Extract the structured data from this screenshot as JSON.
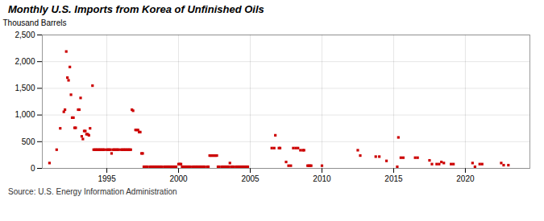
{
  "chart_data": {
    "type": "scatter",
    "title": "Monthly U.S. Imports from Korea of Unfinished Oils",
    "ylabel": "Thousand Barrels",
    "source": "Source: U.S. Energy Information Administration",
    "color": "#cc0000",
    "marker": "square",
    "grid": true,
    "xlim": [
      1990.5,
      2024.5
    ],
    "xticks": [
      1995,
      2000,
      2005,
      2010,
      2015,
      2020
    ],
    "ylim": [
      0,
      2500
    ],
    "yticks": [
      0,
      500,
      {
        "value": 1000,
        "label": "1,000"
      },
      {
        "value": 1500,
        "label": "1,500"
      },
      {
        "value": 2000,
        "label": "2,000"
      },
      {
        "value": 2500,
        "label": "2,500"
      }
    ],
    "x": [
      1991.0,
      1991.5,
      1991.75,
      1992.0,
      1992.08,
      1992.17,
      1992.25,
      1992.33,
      1992.42,
      1992.5,
      1992.58,
      1992.67,
      1992.75,
      1992.83,
      1993.0,
      1993.08,
      1993.17,
      1993.25,
      1993.33,
      1993.42,
      1993.5,
      1993.58,
      1993.67,
      1993.75,
      1993.83,
      1994.0,
      1994.08,
      1994.17,
      1994.25,
      1994.33,
      1994.42,
      1994.5,
      1994.58,
      1994.67,
      1994.75,
      1994.83,
      1995.0,
      1995.08,
      1995.17,
      1995.25,
      1995.33,
      1995.42,
      1995.5,
      1995.58,
      1995.67,
      1995.75,
      1995.83,
      1996.0,
      1996.08,
      1996.17,
      1996.25,
      1996.33,
      1996.42,
      1996.5,
      1996.58,
      1996.67,
      1996.75,
      1996.83,
      1997.0,
      1997.08,
      1997.17,
      1997.25,
      1997.33,
      1997.42,
      1997.5,
      1997.58,
      1997.67,
      1997.75,
      1997.83,
      1998.0,
      1998.08,
      1998.17,
      1998.25,
      1998.33,
      1998.42,
      1998.5,
      1998.58,
      1998.67,
      1998.75,
      1998.83,
      1999.0,
      1999.08,
      1999.17,
      1999.25,
      1999.33,
      1999.42,
      1999.5,
      1999.58,
      1999.67,
      1999.75,
      1999.83,
      2000.0,
      2000.08,
      2000.17,
      2000.25,
      2000.33,
      2000.42,
      2000.5,
      2000.58,
      2000.67,
      2000.75,
      2000.83,
      2001.0,
      2001.08,
      2001.17,
      2001.25,
      2001.33,
      2001.42,
      2001.5,
      2001.58,
      2001.67,
      2001.75,
      2001.83,
      2002.0,
      2002.08,
      2002.17,
      2002.25,
      2002.33,
      2002.42,
      2002.5,
      2002.58,
      2002.67,
      2002.75,
      2002.83,
      2003.0,
      2003.08,
      2003.17,
      2003.25,
      2003.33,
      2003.42,
      2003.5,
      2003.58,
      2003.67,
      2003.75,
      2003.83,
      2004.0,
      2004.08,
      2004.17,
      2004.25,
      2004.33,
      2004.42,
      2004.5,
      2004.58,
      2004.67,
      2004.75,
      2004.83,
      2006.5,
      2006.67,
      2006.75,
      2007.0,
      2007.08,
      2007.5,
      2007.67,
      2007.83,
      2008.0,
      2008.17,
      2008.33,
      2008.5,
      2008.67,
      2008.75,
      2009.0,
      2009.08,
      2009.17,
      2009.25,
      2010.0,
      2012.5,
      2012.67,
      2013.75,
      2014.0,
      2014.5,
      2015.25,
      2015.33,
      2015.5,
      2015.67,
      2016.5,
      2016.67,
      2017.5,
      2017.67,
      2018.0,
      2018.17,
      2018.33,
      2018.5,
      2019.0,
      2019.17,
      2020.5,
      2020.67,
      2021.0,
      2021.17,
      2022.5,
      2022.67,
      2023.0
    ],
    "values": [
      100,
      350,
      750,
      1060,
      1100,
      2190,
      1700,
      1650,
      1900,
      1380,
      950,
      950,
      760,
      760,
      1100,
      1100,
      1320,
      600,
      550,
      700,
      700,
      640,
      640,
      620,
      750,
      1550,
      350,
      350,
      350,
      350,
      350,
      350,
      350,
      350,
      350,
      350,
      350,
      350,
      350,
      350,
      280,
      350,
      350,
      350,
      350,
      350,
      350,
      350,
      350,
      350,
      350,
      350,
      350,
      350,
      350,
      350,
      1100,
      1080,
      720,
      720,
      720,
      680,
      680,
      280,
      280,
      30,
      30,
      30,
      30,
      30,
      30,
      30,
      30,
      30,
      30,
      30,
      30,
      30,
      30,
      30,
      30,
      30,
      30,
      30,
      30,
      30,
      30,
      30,
      30,
      30,
      30,
      80,
      80,
      80,
      30,
      30,
      30,
      30,
      30,
      30,
      30,
      30,
      30,
      30,
      30,
      30,
      30,
      30,
      30,
      30,
      30,
      30,
      30,
      30,
      30,
      240,
      240,
      240,
      240,
      240,
      240,
      240,
      30,
      30,
      30,
      30,
      30,
      30,
      30,
      30,
      30,
      100,
      30,
      30,
      30,
      30,
      30,
      30,
      30,
      30,
      30,
      30,
      30,
      30,
      30,
      30,
      380,
      380,
      620,
      380,
      380,
      120,
      50,
      50,
      380,
      380,
      380,
      340,
      340,
      340,
      50,
      50,
      50,
      50,
      50,
      340,
      240,
      220,
      220,
      140,
      30,
      580,
      200,
      200,
      200,
      200,
      150,
      80,
      80,
      80,
      120,
      100,
      80,
      80,
      100,
      30,
      80,
      80,
      100,
      60,
      60
    ]
  }
}
